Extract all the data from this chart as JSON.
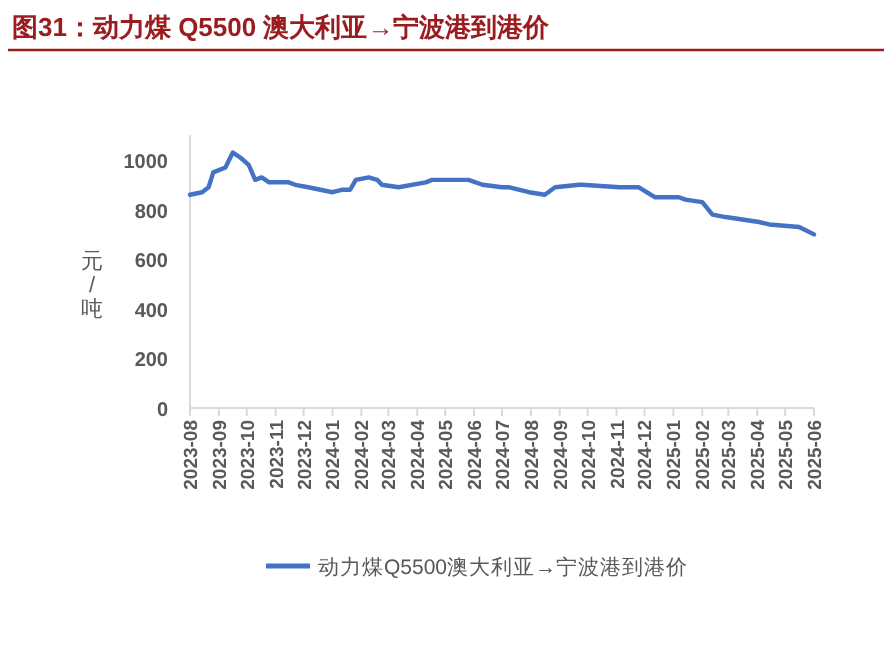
{
  "chart_data": {
    "type": "line",
    "title": "图31：动力煤 Q5500 澳大利亚→宁波港到港价",
    "ylabel": "元/吨",
    "x": [
      "2023-08-01",
      "2023-08-14",
      "2023-08-21",
      "2023-08-26",
      "2023-09-08",
      "2023-09-16",
      "2023-09-24",
      "2023-10-03",
      "2023-10-10",
      "2023-10-17",
      "2023-10-25",
      "2023-11-15",
      "2023-11-22",
      "2023-12-06",
      "2024-01-01",
      "2024-01-11",
      "2024-01-20",
      "2024-01-26",
      "2024-02-09",
      "2024-02-18",
      "2024-02-23",
      "2024-03-12",
      "2024-04-10",
      "2024-04-17",
      "2024-05-11",
      "2024-05-26",
      "2024-06-10",
      "2024-07-01",
      "2024-07-09",
      "2024-07-30",
      "2024-08-16",
      "2024-08-27",
      "2024-09-22",
      "2024-09-25",
      "2024-11-04",
      "2024-11-25",
      "2024-12-12",
      "2025-01-07",
      "2025-01-14",
      "2025-02-01",
      "2025-02-12",
      "2025-02-26",
      "2025-04-03",
      "2025-04-14",
      "2025-05-16",
      "2025-06-01"
    ],
    "series": [
      {
        "name": "动力煤Q5500澳大利亚→宁波港到港价",
        "color": "#4472c4",
        "values": [
          860,
          870,
          890,
          950,
          970,
          1030,
          1010,
          980,
          920,
          930,
          910,
          910,
          900,
          890,
          870,
          880,
          880,
          920,
          930,
          920,
          900,
          890,
          910,
          920,
          920,
          920,
          900,
          890,
          890,
          870,
          860,
          890,
          900,
          900,
          890,
          890,
          850,
          850,
          840,
          830,
          780,
          770,
          750,
          740,
          730,
          700
        ]
      }
    ],
    "xlim": [
      "2023-08",
      "2025-06"
    ],
    "xticks": [
      "2023-08",
      "2023-09",
      "2023-10",
      "2023-11",
      "2023-12",
      "2024-01",
      "2024-02",
      "2024-03",
      "2024-04",
      "2024-05",
      "2024-06",
      "2024-07",
      "2024-08",
      "2024-09",
      "2024-10",
      "2024-11",
      "2024-12",
      "2025-01",
      "2025-02",
      "2025-03",
      "2025-04",
      "2025-05",
      "2025-06"
    ],
    "ylim": [
      0,
      1100
    ],
    "yticks": [
      0,
      200,
      400,
      600,
      800,
      1000
    ],
    "legend": "bottom",
    "grid": false,
    "marker": "none",
    "line_style": "solid"
  }
}
